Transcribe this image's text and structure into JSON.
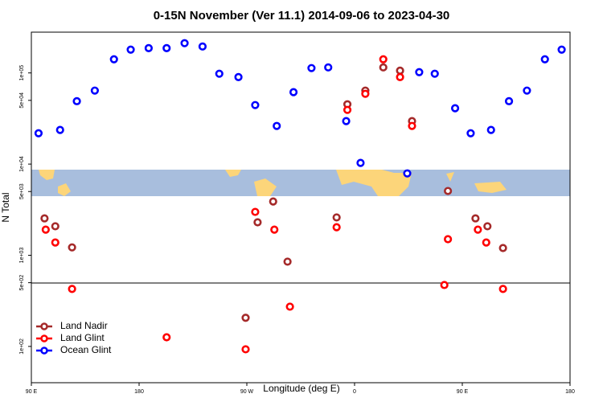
{
  "chart_data": {
    "type": "scatter",
    "title": "0-15N November (Ver 11.1)   2014-09-06 to 2023-04-30",
    "x_label": "Longitude (deg E)",
    "y_label": "N Total",
    "log_y": true,
    "legend": "bottom-left",
    "xlim": [
      90,
      540
    ],
    "xticks": [
      {
        "value": 90,
        "label": "90 E"
      },
      {
        "value": 180,
        "label": "180"
      },
      {
        "value": 270,
        "label": "90 W"
      },
      {
        "value": 360,
        "label": "0"
      },
      {
        "value": 450,
        "label": "90 E"
      },
      {
        "value": 540,
        "label": "180"
      }
    ],
    "ylim": [
      40,
      280000
    ],
    "yticks": [
      {
        "value": 100,
        "label": "1e+02"
      },
      {
        "value": 500,
        "label": "5e+02"
      },
      {
        "value": 1000,
        "label": "1e+03"
      },
      {
        "value": 5000,
        "label": "5e+03"
      },
      {
        "value": 10000,
        "label": "1e+04"
      },
      {
        "value": 50000,
        "label": "5e+04"
      },
      {
        "value": 100000,
        "label": "1e+05"
      }
    ],
    "series": [
      {
        "name": "Land Nadir",
        "color": "#a52a2a",
        "x": [
          101,
          110,
          124,
          269,
          279,
          292,
          304,
          345,
          354,
          369,
          384,
          398,
          408,
          438,
          461,
          471,
          484
        ],
        "values": [
          2540,
          2080,
          1220,
          206,
          2300,
          3890,
          851,
          2600,
          45300,
          64000,
          115000,
          106000,
          29600,
          5070,
          2540,
          2080,
          1200
        ]
      },
      {
        "name": "Land Glint",
        "color": "#ff0000",
        "x": [
          102,
          110,
          124,
          203,
          269,
          277,
          293,
          306,
          345,
          354,
          369,
          384,
          398,
          408,
          435,
          438,
          463,
          470,
          484
        ],
        "values": [
          1910,
          1380,
          427,
          126,
          93,
          2990,
          1910,
          273,
          2030,
          39300,
          59000,
          141000,
          90000,
          26200,
          472,
          1500,
          1910,
          1380,
          427
        ]
      },
      {
        "name": "Ocean Glint",
        "color": "#0000ff",
        "x": [
          96,
          114,
          128,
          143,
          159,
          173,
          188,
          203,
          218,
          233,
          247,
          263,
          277,
          295,
          309,
          324,
          338,
          353,
          365,
          404,
          414,
          427,
          444,
          457,
          474,
          489,
          504,
          519,
          533
        ],
        "values": [
          21800,
          23700,
          49000,
          64000,
          141000,
          180000,
          187000,
          187000,
          212000,
          195000,
          98000,
          90000,
          44400,
          26200,
          61500,
          113000,
          115000,
          29600,
          10300,
          7900,
          102000,
          98000,
          41000,
          21800,
          23700,
          49000,
          64000,
          141000,
          180000
        ]
      }
    ]
  }
}
